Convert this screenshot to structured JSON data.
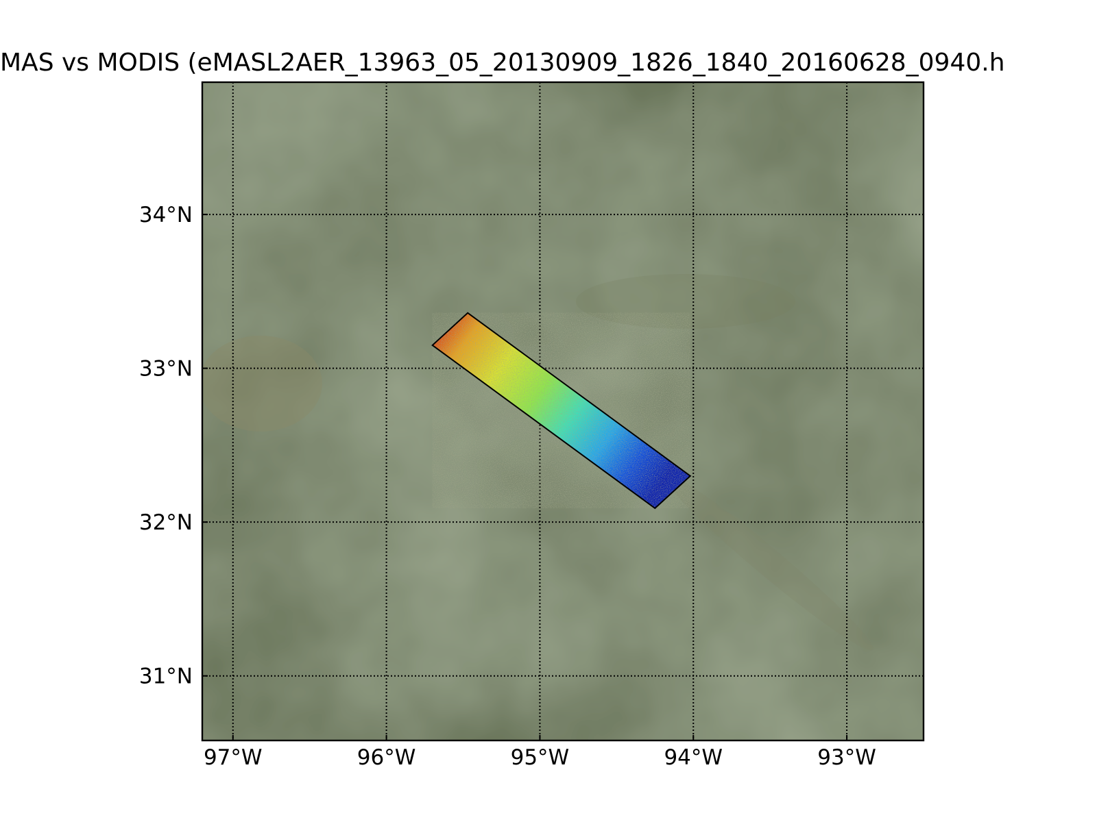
{
  "figure": {
    "title": "MAS vs MODIS (eMASL2AER_13963_05_20130909_1826_1840_20160628_0940.h"
  },
  "map": {
    "extent": {
      "lon": [
        -97.2,
        -92.5
      ],
      "lat": [
        30.58,
        34.86
      ]
    },
    "gridlines": {
      "lons": [
        -97,
        -96,
        -95,
        -94,
        -93
      ],
      "lats": [
        31,
        32,
        33,
        34
      ],
      "style": "dotted"
    },
    "lon_labels": [
      "97°W",
      "96°W",
      "95°W",
      "94°W",
      "93°W"
    ],
    "lat_labels": [
      "31°N",
      "32°N",
      "33°N",
      "34°N"
    ],
    "basemap": "satellite imagery (green/brown terrain)",
    "swath": {
      "corners": [
        [
          -95.47,
          33.36
        ],
        [
          -94.02,
          32.3
        ],
        [
          -94.25,
          32.09
        ],
        [
          -95.7,
          33.15
        ]
      ],
      "colormap": "jet"
    }
  }
}
